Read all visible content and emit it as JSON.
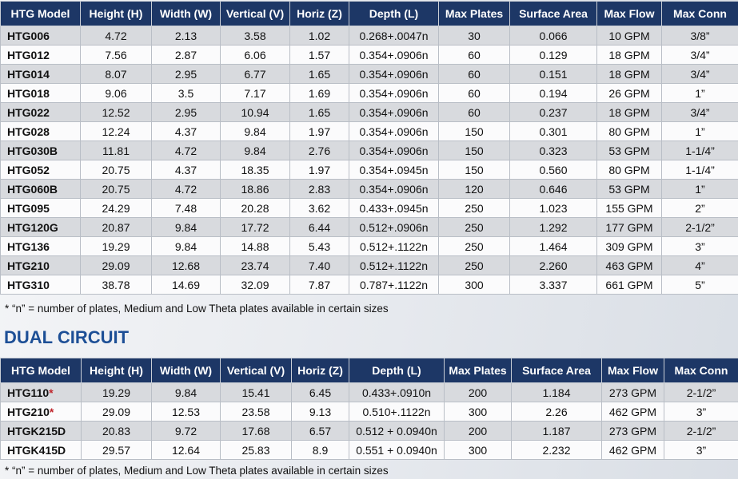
{
  "single": {
    "header": [
      "HTG Model",
      "Height (H)",
      "Width (W)",
      "Vertical (V)",
      "Horiz (Z)",
      "Depth (L)",
      "Max Plates",
      "Surface Area",
      "Max Flow",
      "Max Conn"
    ],
    "rows": [
      [
        "HTG006",
        "4.72",
        "2.13",
        "3.58",
        "1.02",
        "0.268+.0047n",
        "30",
        "0.066",
        "10 GPM",
        "3/8”"
      ],
      [
        "HTG012",
        "7.56",
        "2.87",
        "6.06",
        "1.57",
        "0.354+.0906n",
        "60",
        "0.129",
        "18 GPM",
        "3/4”"
      ],
      [
        "HTG014",
        "8.07",
        "2.95",
        "6.77",
        "1.65",
        "0.354+.0906n",
        "60",
        "0.151",
        "18 GPM",
        "3/4”"
      ],
      [
        "HTG018",
        "9.06",
        "3.5",
        "7.17",
        "1.69",
        "0.354+.0906n",
        "60",
        "0.194",
        "26 GPM",
        "1”"
      ],
      [
        "HTG022",
        "12.52",
        "2.95",
        "10.94",
        "1.65",
        "0.354+.0906n",
        "60",
        "0.237",
        "18 GPM",
        "3/4”"
      ],
      [
        "HTG028",
        "12.24",
        "4.37",
        "9.84",
        "1.97",
        "0.354+.0906n",
        "150",
        "0.301",
        "80 GPM",
        "1”"
      ],
      [
        "HTG030B",
        "11.81",
        "4.72",
        "9.84",
        "2.76",
        "0.354+.0906n",
        "150",
        "0.323",
        "53 GPM",
        "1-1/4”"
      ],
      [
        "HTG052",
        "20.75",
        "4.37",
        "18.35",
        "1.97",
        "0.354+.0945n",
        "150",
        "0.560",
        "80 GPM",
        "1-1/4”"
      ],
      [
        "HTG060B",
        "20.75",
        "4.72",
        "18.86",
        "2.83",
        "0.354+.0906n",
        "120",
        "0.646",
        "53 GPM",
        "1”"
      ],
      [
        "HTG095",
        "24.29",
        "7.48",
        "20.28",
        "3.62",
        "0.433+.0945n",
        "250",
        "1.023",
        "155 GPM",
        "2”"
      ],
      [
        "HTG120G",
        "20.87",
        "9.84",
        "17.72",
        "6.44",
        "0.512+.0906n",
        "250",
        "1.292",
        "177 GPM",
        "2-1/2”"
      ],
      [
        "HTG136",
        "19.29",
        "9.84",
        "14.88",
        "5.43",
        "0.512+.1122n",
        "250",
        "1.464",
        "309 GPM",
        "3”"
      ],
      [
        "HTG210",
        "29.09",
        "12.68",
        "23.74",
        "7.40",
        "0.512+.1122n",
        "250",
        "2.260",
        "463 GPM",
        "4”"
      ],
      [
        "HTG310",
        "38.78",
        "14.69",
        "32.09",
        "7.87",
        "0.787+.1122n",
        "300",
        "3.337",
        "661 GPM",
        "5”"
      ]
    ],
    "footnote": "* “n” = number of plates, Medium and Low Theta plates available in certain sizes"
  },
  "dual": {
    "title": "DUAL CIRCUIT",
    "header": [
      "HTG Model",
      "Height (H)",
      "Width (W)",
      "Vertical (V)",
      "Horiz (Z)",
      "Depth (L)",
      "Max Plates",
      "Surface Area",
      "Max Flow",
      "Max Conn"
    ],
    "rows": [
      [
        {
          "model": "HTG110",
          "flag": "*"
        },
        "19.29",
        "9.84",
        "15.41",
        "6.45",
        "0.433+.0910n",
        "200",
        "1.184",
        "273 GPM",
        "2-1/2”"
      ],
      [
        {
          "model": "HTG210",
          "flag": "*"
        },
        "29.09",
        "12.53",
        "23.58",
        "9.13",
        "0.510+.1122n",
        "300",
        "2.26",
        "462 GPM",
        "3”"
      ],
      [
        "HTGK215D",
        "20.83",
        "9.72",
        "17.68",
        "6.57",
        "0.512 + 0.0940n",
        "200",
        "1.187",
        "273 GPM",
        "2-1/2”"
      ],
      [
        "HTGK415D",
        "29.57",
        "12.64",
        "25.83",
        "8.9",
        "0.551 + 0.0940n",
        "300",
        "2.232",
        "462 GPM",
        "3”"
      ]
    ],
    "footnote": "* “n” = number of plates, Medium and Low Theta plates available in certain sizes"
  }
}
